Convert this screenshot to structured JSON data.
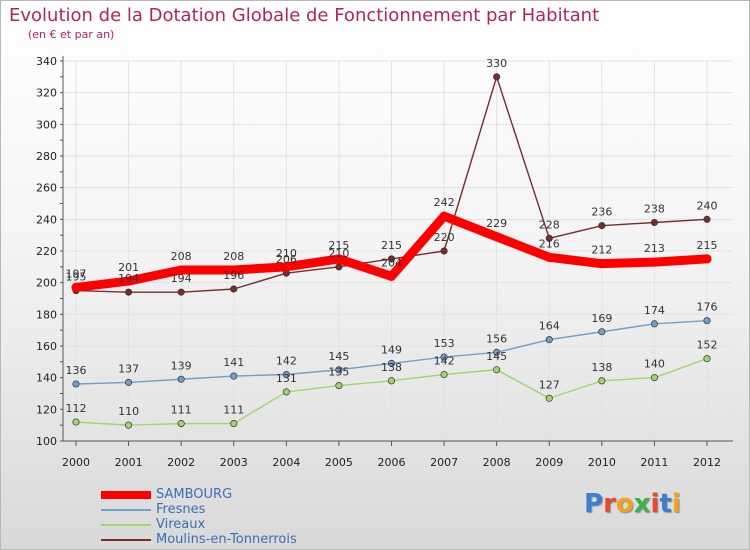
{
  "title": "Evolution de la Dotation Globale de Fonctionnement par Habitant",
  "subtitle": "(en € et par an)",
  "logo": {
    "text": "Proxiti",
    "letter_colors": [
      "#3a7fd0",
      "#e8492f",
      "#f2a21b",
      "#3bb34a",
      "#e8492f",
      "#3a7fd0",
      "#f2a21b"
    ]
  },
  "chart_data": {
    "type": "line",
    "x": [
      "2000",
      "2001",
      "2002",
      "2003",
      "2004",
      "2005",
      "2006",
      "2007",
      "2008",
      "2009",
      "2010",
      "2011",
      "2012"
    ],
    "ylim": [
      100,
      340
    ],
    "yticks": [
      100,
      120,
      140,
      160,
      180,
      200,
      220,
      240,
      260,
      280,
      300,
      320,
      340
    ],
    "grid": true,
    "legend_position": "bottom-left",
    "series": [
      {
        "name": "SAMBOURG",
        "color": "#ff0000",
        "values": [
          197,
          201,
          208,
          208,
          210,
          215,
          204,
          242,
          229,
          216,
          212,
          213,
          215
        ]
      },
      {
        "name": "Fresnes",
        "color": "#6fa0cc",
        "values": [
          136,
          137,
          139,
          141,
          142,
          145,
          149,
          153,
          156,
          164,
          169,
          174,
          176
        ]
      },
      {
        "name": "Vireaux",
        "color": "#9ed86a",
        "values": [
          112,
          110,
          111,
          111,
          131,
          135,
          138,
          142,
          145,
          127,
          138,
          140,
          152
        ]
      },
      {
        "name": "Moulins-en-Tonnerrois",
        "color": "#7b2b2b",
        "values": [
          195,
          194,
          194,
          196,
          206,
          210,
          215,
          220,
          330,
          228,
          236,
          238,
          240
        ]
      }
    ]
  }
}
